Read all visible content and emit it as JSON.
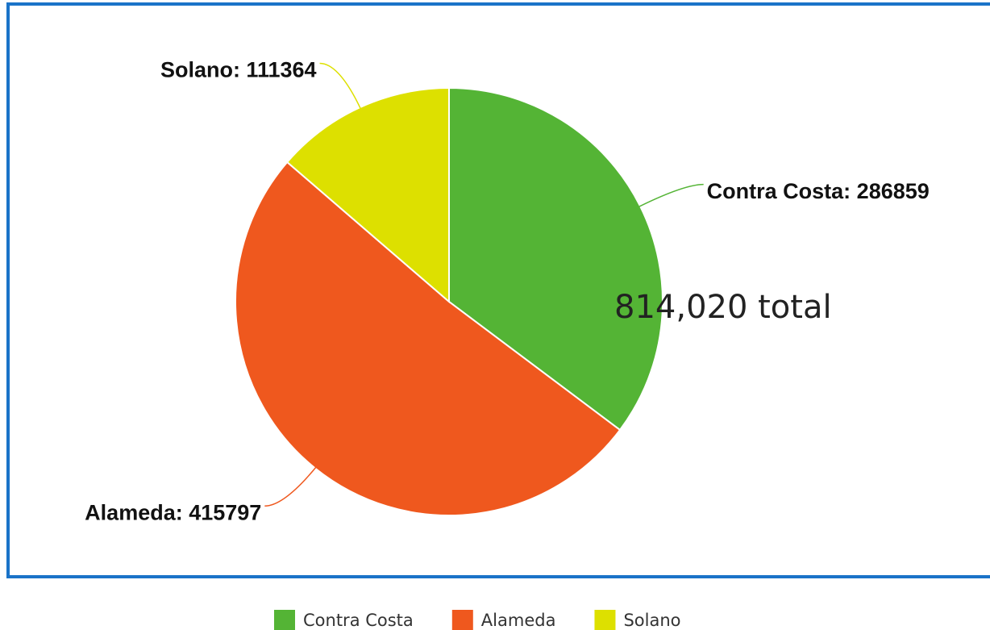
{
  "chart_data": {
    "type": "pie",
    "categories": [
      "Contra Costa",
      "Alameda",
      "Solano"
    ],
    "values": [
      286859,
      415797,
      111364
    ],
    "value_labels": [
      "Contra Costa: 286859",
      "Alameda: 415797",
      "Solano: 111364"
    ],
    "colors": [
      "#54b435",
      "#ef581e",
      "#dde000"
    ],
    "annotation": "814,020 total",
    "legend": "bottom"
  }
}
